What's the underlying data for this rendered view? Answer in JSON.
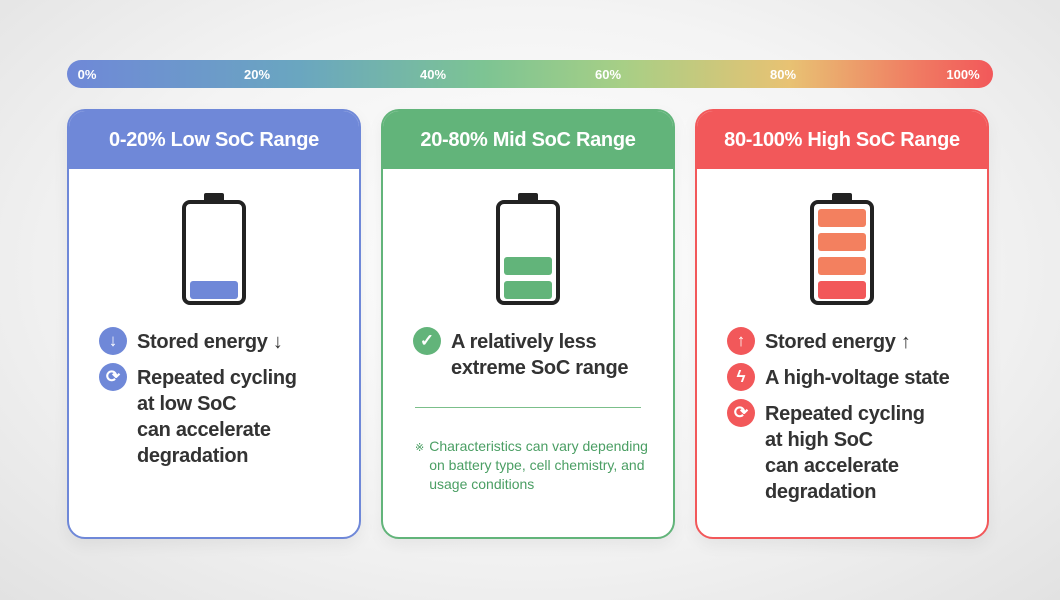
{
  "scale": {
    "ticks": [
      "0%",
      "20%",
      "40%",
      "60%",
      "80%",
      "100%"
    ]
  },
  "colors": {
    "low": "#6f88d8",
    "mid": "#62b47a",
    "high": "#f2585a",
    "high_bar": "#f3805f",
    "text": "#333333",
    "note": "#4a9e63"
  },
  "cards": {
    "low": {
      "title": "0-20% Low SoC Range",
      "battery_level_bars": 1,
      "items": [
        {
          "icon": "arrow-down-icon",
          "text": "Stored energy ↓"
        },
        {
          "icon": "cycle-icon",
          "text": "Repeated cycling\nat low SoC\ncan accelerate\ndegradation"
        }
      ]
    },
    "mid": {
      "title": "20-80% Mid SoC Range",
      "battery_level_bars": 2,
      "items": [
        {
          "icon": "check-icon",
          "text": "A relatively less\nextreme SoC range"
        }
      ],
      "note_mark": "※",
      "note": "Characteristics can vary depending on battery type, cell chemistry, and usage conditions"
    },
    "high": {
      "title": "80-100% High SoC Range",
      "battery_level_bars": 4,
      "items": [
        {
          "icon": "arrow-up-icon",
          "text": "Stored energy ↑"
        },
        {
          "icon": "lightning-icon",
          "text": "A high-voltage state"
        },
        {
          "icon": "cycle-icon",
          "text": "Repeated cycling\nat high SoC\ncan accelerate\ndegradation"
        }
      ]
    }
  }
}
